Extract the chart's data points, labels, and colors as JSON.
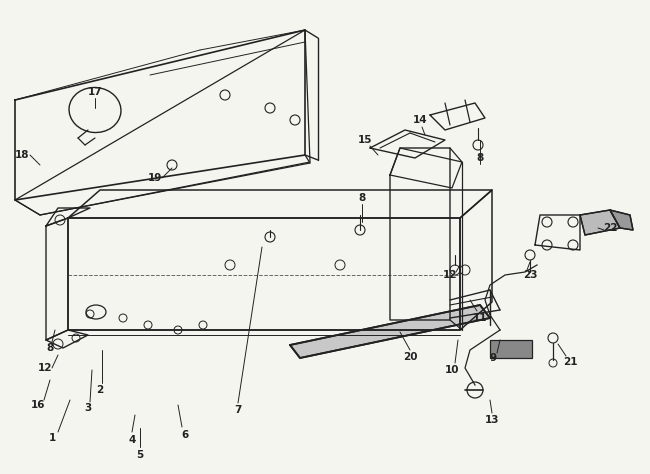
{
  "bg_color": "#f5f5f0",
  "line_color": "#222222",
  "fig_width": 6.5,
  "fig_height": 4.74,
  "dpi": 100
}
